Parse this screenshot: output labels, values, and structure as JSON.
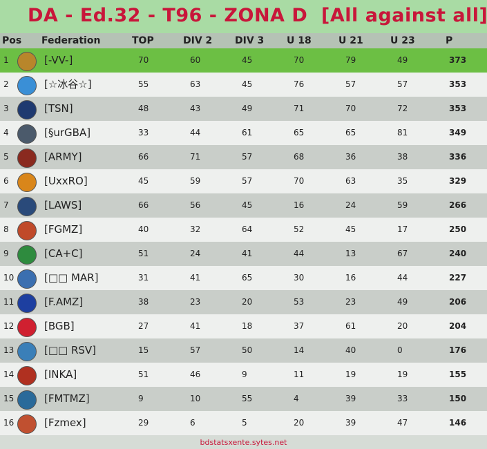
{
  "header": {
    "title": "DA - Ed.32 - T96 - ZONA D  [All against all]"
  },
  "table": {
    "columns": [
      "Pos",
      "Federation",
      "TOP",
      "DIV 2",
      "DIV 3",
      "U 18",
      "U 21",
      "U 23",
      "P"
    ],
    "rows": [
      [
        1,
        "[-VV-]",
        70,
        60,
        45,
        70,
        79,
        49,
        373
      ],
      [
        2,
        "[☆冰谷☆]",
        55,
        63,
        45,
        76,
        57,
        57,
        353
      ],
      [
        3,
        "[TSN]",
        48,
        43,
        49,
        71,
        70,
        72,
        353
      ],
      [
        4,
        "[§urGBA]",
        33,
        44,
        61,
        65,
        65,
        81,
        349
      ],
      [
        5,
        "[ARMY]",
        66,
        71,
        57,
        68,
        36,
        38,
        336
      ],
      [
        6,
        "[UxxRO]",
        45,
        59,
        57,
        70,
        63,
        35,
        329
      ],
      [
        7,
        "[LAWS]",
        66,
        56,
        45,
        16,
        24,
        59,
        266
      ],
      [
        8,
        "[FGMZ]",
        40,
        32,
        64,
        52,
        45,
        17,
        250
      ],
      [
        9,
        "[CA+C]",
        51,
        24,
        41,
        44,
        13,
        67,
        240
      ],
      [
        10,
        "[□□ MAR]",
        31,
        41,
        65,
        30,
        16,
        44,
        227
      ],
      [
        11,
        "[F.AMZ]",
        38,
        23,
        20,
        53,
        23,
        49,
        206
      ],
      [
        12,
        "[BGB]",
        27,
        41,
        18,
        37,
        61,
        20,
        204
      ],
      [
        13,
        "[□□ RSV]",
        15,
        57,
        50,
        14,
        40,
        0,
        176
      ],
      [
        14,
        "[INKA]",
        51,
        46,
        9,
        11,
        19,
        19,
        155
      ],
      [
        15,
        "[FMTMZ]",
        9,
        10,
        55,
        4,
        39,
        33,
        150
      ],
      [
        16,
        "[Fzmex]",
        29,
        6,
        5,
        20,
        39,
        47,
        146
      ]
    ]
  },
  "footer": {
    "text": "bdstatsxente.sytes.net"
  }
}
